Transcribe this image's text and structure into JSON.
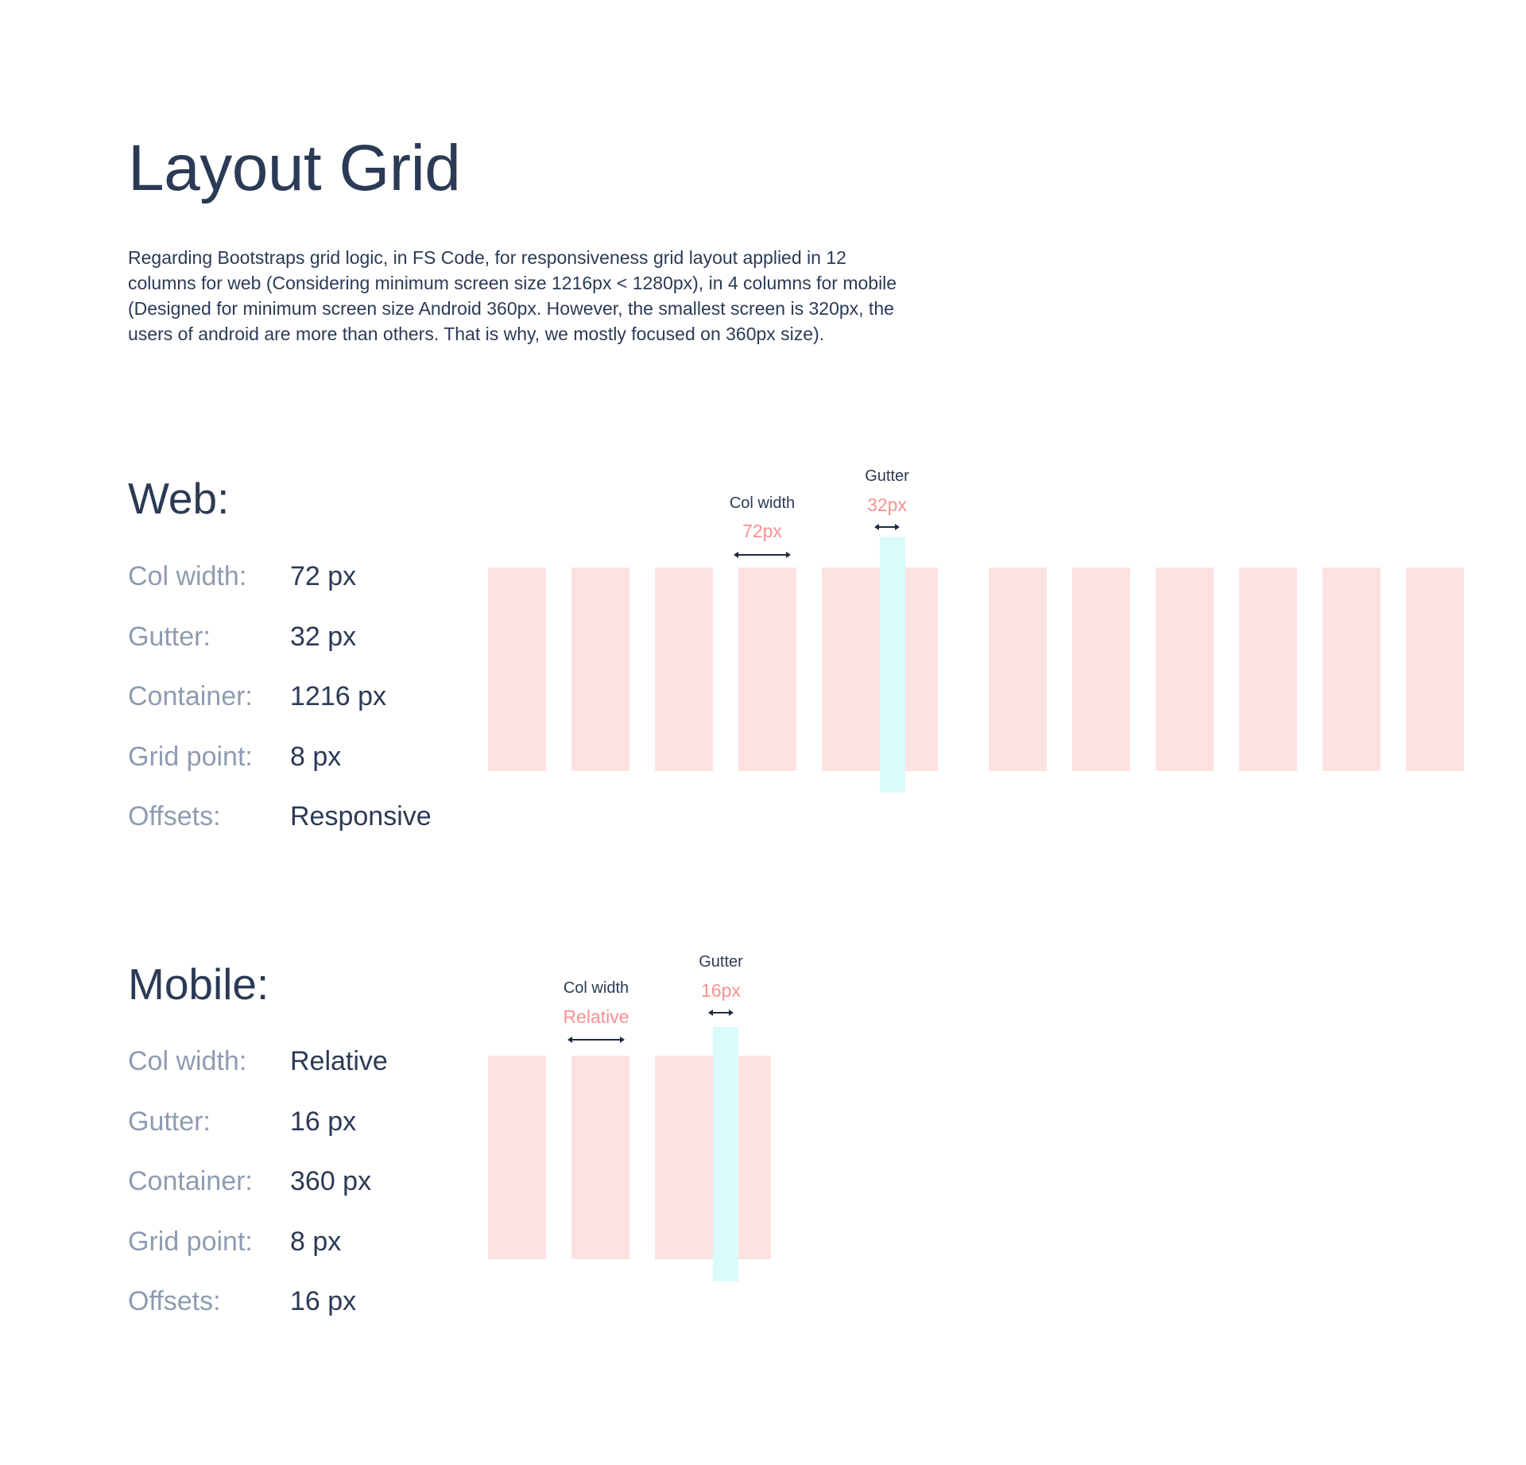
{
  "page": {
    "title": "Layout Grid",
    "intro_lines": [
      "Regarding  Bootstraps grid logic, in FS Code, for responsiveness grid layout applied in 12",
      "columns for web (Considering minimum screen size 1216px < 1280px), in 4 columns for mobile",
      "(Designed for minimum screen size Android 360px. However, the smallest screen is 320px, the",
      "users of android are more than others. That is why, we mostly focused on 360px size)."
    ]
  },
  "colors": {
    "text": "#2b3a55",
    "muted_label": "#8e9cb1",
    "column_fill": "#fde2e2",
    "gutter_fill": "#d9fbfb",
    "annotation_value": "#f59292"
  },
  "web": {
    "heading": "Web:",
    "specs": [
      {
        "label": "Col width:",
        "value": "72 px"
      },
      {
        "label": "Gutter:",
        "value": "32 px"
      },
      {
        "label": "Container:",
        "value": "1216 px"
      },
      {
        "label": "Grid point:",
        "value": "8 px"
      },
      {
        "label": "Offsets:",
        "value": "Responsive"
      }
    ],
    "column_count": 12,
    "annotations": {
      "col_width_label": "Col width",
      "col_width_value": "72px",
      "gutter_label": "Gutter",
      "gutter_value": "32px"
    }
  },
  "mobile": {
    "heading": "Mobile:",
    "specs": [
      {
        "label": "Col width:",
        "value": "Relative"
      },
      {
        "label": "Gutter:",
        "value": "16 px"
      },
      {
        "label": "Container:",
        "value": "360 px"
      },
      {
        "label": "Grid point:",
        "value": "8 px"
      },
      {
        "label": "Offsets:",
        "value": "16 px"
      }
    ],
    "column_count": 4,
    "annotations": {
      "col_width_label": "Col width",
      "col_width_value": "Relative",
      "gutter_label": "Gutter",
      "gutter_value": "16px"
    }
  }
}
